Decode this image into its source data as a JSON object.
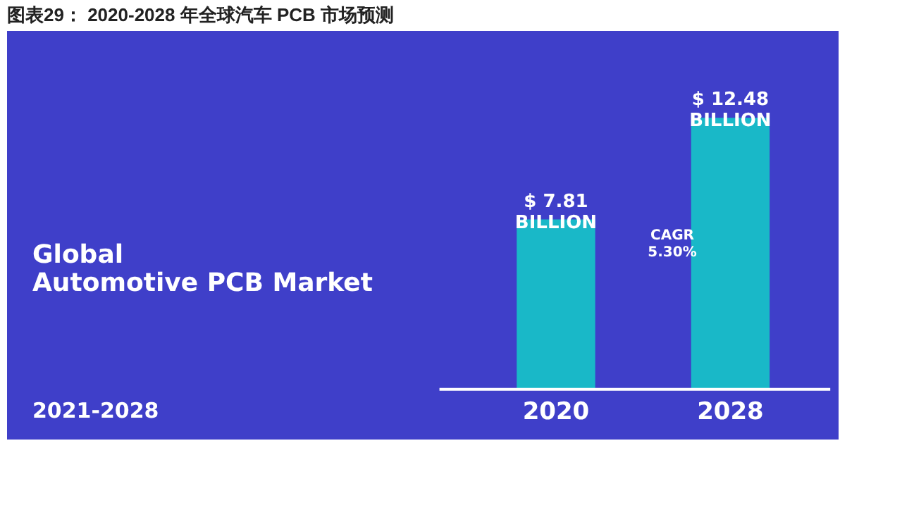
{
  "chart_data": {
    "type": "bar",
    "title": "图表29：  2020-2028 年全球汽车 PCB 市场预测",
    "categories": [
      "2020",
      "2028"
    ],
    "values": [
      7.81,
      12.48
    ],
    "value_labels": [
      "$ 7.81\nBILLION",
      "$ 12.48\nBILLION"
    ],
    "color": "#19b8c8",
    "annotations": [
      "Global\nAutomotive PCB Market",
      "2021-2028",
      "CAGR\n5.30%"
    ]
  }
}
